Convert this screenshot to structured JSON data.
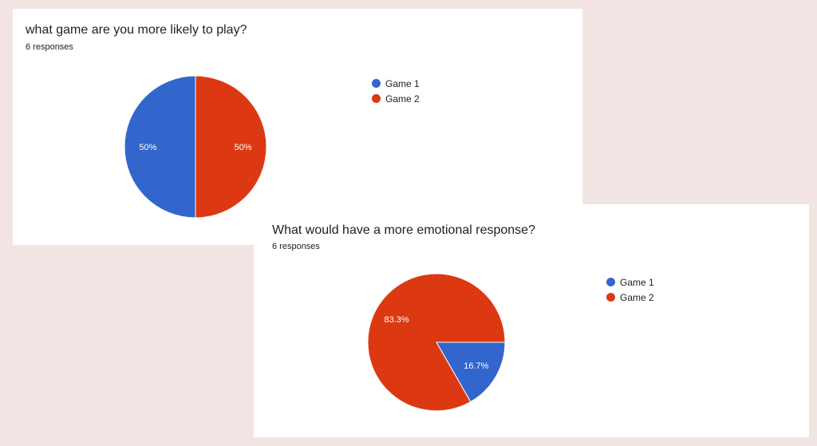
{
  "chart_data": [
    {
      "type": "pie",
      "title": "what game are you more likely to play?",
      "subtitle": "6 responses",
      "categories": [
        "Game 1",
        "Game 2"
      ],
      "values": [
        50,
        50
      ],
      "labels": [
        "50%",
        "50%"
      ],
      "colors": [
        "#3366cc",
        "#dc3912"
      ],
      "legend_position": "right"
    },
    {
      "type": "pie",
      "title": "What would have a more emotional response?",
      "subtitle": "6 responses",
      "categories": [
        "Game 1",
        "Game 2"
      ],
      "values": [
        16.7,
        83.3
      ],
      "labels": [
        "16.7%",
        "83.3%"
      ],
      "colors": [
        "#3366cc",
        "#dc3912"
      ],
      "legend_position": "right"
    }
  ]
}
